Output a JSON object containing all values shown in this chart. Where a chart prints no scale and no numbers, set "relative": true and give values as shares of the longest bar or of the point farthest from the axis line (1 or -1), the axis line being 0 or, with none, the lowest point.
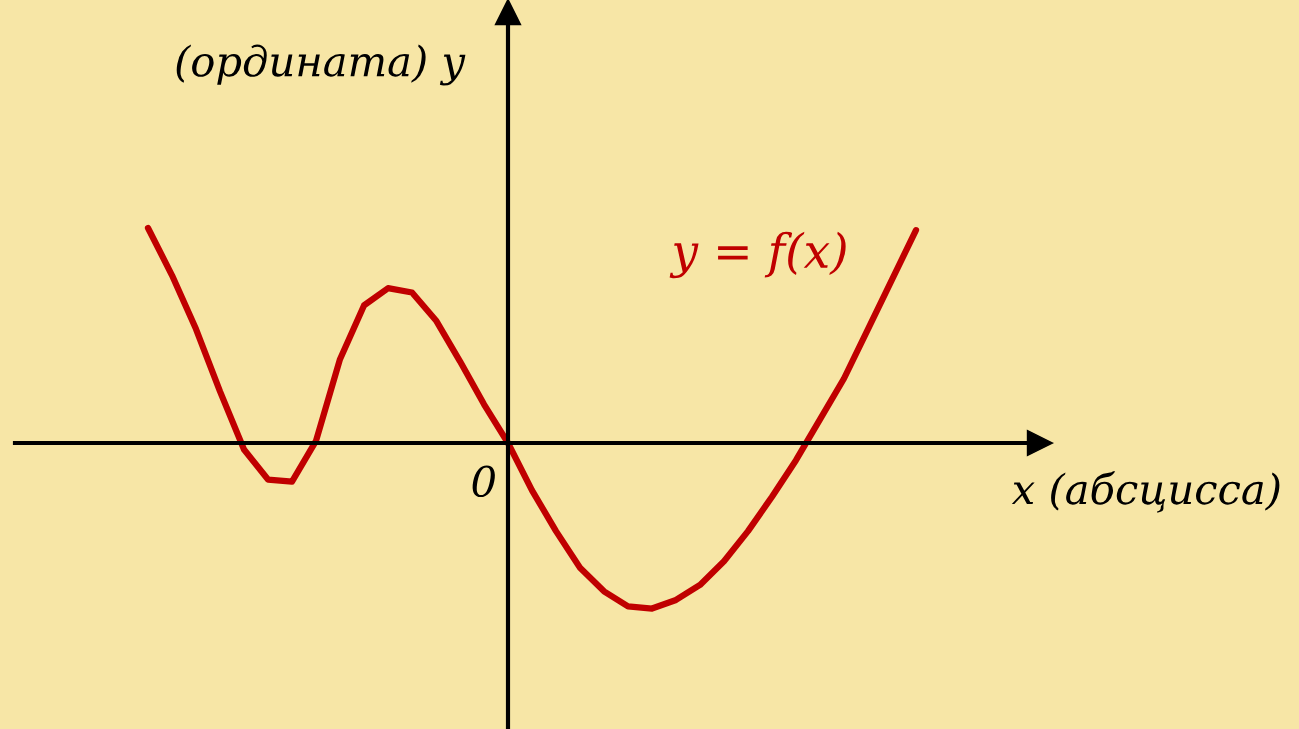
{
  "chart_data": {
    "type": "line",
    "relative": true,
    "xlabel": "x (абсцисса)",
    "ylabel": "(ордината) y",
    "categories": [
      null,
      null,
      null,
      null,
      null,
      null,
      null,
      null,
      null,
      null,
      null,
      null,
      null,
      null,
      null,
      null,
      null,
      null,
      null,
      null,
      null,
      null,
      null,
      null,
      null,
      null,
      null,
      null,
      null,
      null,
      null,
      null,
      null
    ],
    "series": [
      {
        "name": "y = f(x)",
        "color": "#c00000",
        "values": [
          1.0,
          0.78,
          0.53,
          0.24,
          -0.03,
          -0.17,
          -0.18,
          0.01,
          0.39,
          0.64,
          0.72,
          0.7,
          0.57,
          0.38,
          0.18,
          0,
          -0.22,
          -0.41,
          -0.58,
          -0.69,
          -0.76,
          -0.77,
          -0.73,
          -0.66,
          -0.55,
          -0.41,
          -0.25,
          -0.08,
          0.11,
          0.3,
          0.53,
          0.76,
          0.99
        ]
      }
    ],
    "annotations": [
      "0"
    ]
  }
}
